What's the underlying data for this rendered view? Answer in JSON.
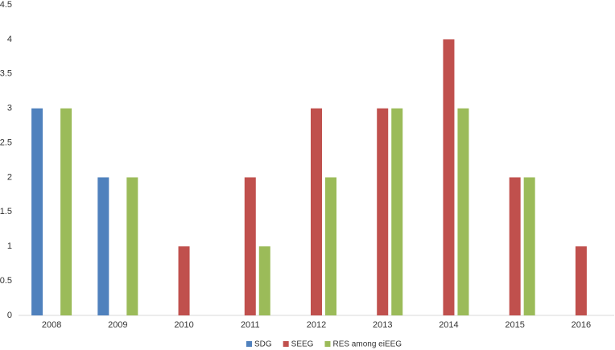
{
  "chart_data": {
    "type": "bar",
    "categories": [
      "2008",
      "2009",
      "2010",
      "2011",
      "2012",
      "2013",
      "2014",
      "2015",
      "2016"
    ],
    "series": [
      {
        "name": "SDG",
        "color": "#4f81bd",
        "values": [
          3,
          2,
          0,
          0,
          0,
          0,
          0,
          0,
          0
        ]
      },
      {
        "name": "SEEG",
        "color": "#c0504d",
        "values": [
          0,
          0,
          1,
          2,
          3,
          3,
          4,
          2,
          1
        ]
      },
      {
        "name": "RES among eiEEG",
        "color": "#9bbb59",
        "values": [
          3,
          2,
          0,
          1,
          2,
          3,
          3,
          2,
          0
        ]
      }
    ],
    "ylim": [
      0,
      4.5
    ],
    "yticks": [
      0,
      0.5,
      1,
      1.5,
      2,
      2.5,
      3,
      3.5,
      4,
      4.5
    ],
    "grid": false
  }
}
